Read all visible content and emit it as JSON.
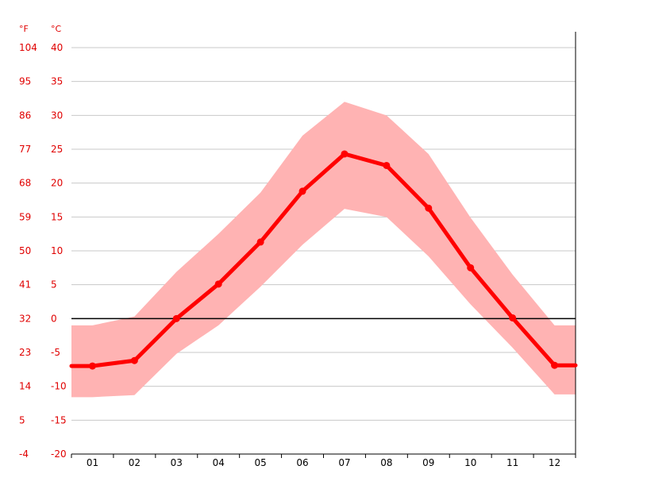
{
  "chart_data": {
    "type": "line",
    "categories": [
      "01",
      "02",
      "03",
      "04",
      "05",
      "06",
      "07",
      "08",
      "09",
      "10",
      "11",
      "12"
    ],
    "unit_labels": {
      "fahrenheit": "°F",
      "celsius": "°C"
    },
    "y_ticks_celsius": [
      "40",
      "35",
      "30",
      "25",
      "20",
      "15",
      "10",
      "5",
      "0",
      "-5",
      "-10",
      "-15",
      "-20"
    ],
    "y_ticks_fahrenheit": [
      "104",
      "95",
      "86",
      "77",
      "68",
      "59",
      "50",
      "41",
      "32",
      "23",
      "14",
      "5",
      "-4"
    ],
    "ylim": [
      -20,
      40
    ],
    "grid": true,
    "series": [
      {
        "values": [
          -7.0,
          -6.2,
          0.0,
          5.1,
          11.3,
          18.8,
          24.3,
          22.6,
          16.3,
          7.5,
          0.1,
          -6.9
        ]
      },
      {
        "type": "band",
        "upper": [
          -1.0,
          0.3,
          6.9,
          12.5,
          18.6,
          27.0,
          32.0,
          30.0,
          24.3,
          14.9,
          6.5,
          -1.0
        ],
        "lower": [
          -11.6,
          -11.3,
          -5.2,
          -1.0,
          4.7,
          10.9,
          16.2,
          15.0,
          9.2,
          2.1,
          -4.3,
          -11.2
        ]
      }
    ],
    "colors": {
      "line": "#ff0000",
      "band": "#ffb3b3",
      "grid": "#c8c8c8",
      "zero_line": "#000000",
      "axis": "#000000",
      "tick_text": "#e00000"
    }
  }
}
